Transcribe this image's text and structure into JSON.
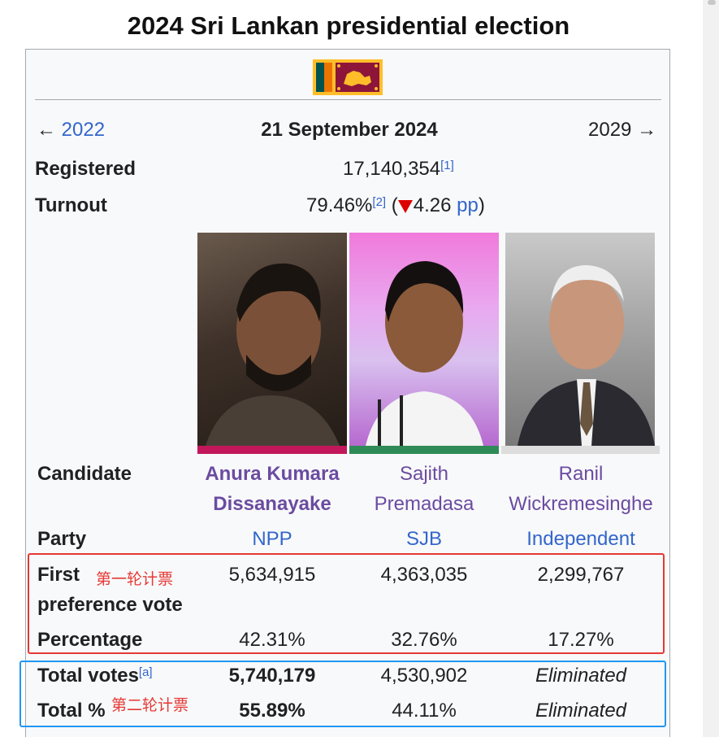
{
  "title": "2024 Sri Lankan presidential election",
  "nav": {
    "prev": "2022",
    "prev_arrow": "←",
    "date": "21 September 2024",
    "next": "2029",
    "next_arrow": "→"
  },
  "registered": {
    "label": "Registered",
    "value": "17,140,354",
    "ref": "[1]"
  },
  "turnout": {
    "label": "Turnout",
    "value": "79.46%",
    "ref": "[2]",
    "open": "(",
    "change": "4.26",
    "unit": "pp",
    "close": ")"
  },
  "rows": {
    "candidate": "Candidate",
    "party": "Party",
    "first_pref_line1": "First",
    "first_pref_line2": "preference vote",
    "percentage": "Percentage",
    "total_votes": "Total votes",
    "total_votes_ref": "[a]",
    "total_pct": "Total %"
  },
  "candidates": [
    {
      "name_line1": "Anura Kumara",
      "name_line2": "Dissanayake",
      "party": "NPP",
      "first_pref": "5,634,915",
      "percentage": "42.31%",
      "total_votes": "5,740,179",
      "total_pct": "55.89%",
      "party_color": "#c2185b"
    },
    {
      "name_line1": "Sajith",
      "name_line2": "Premadasa",
      "party": "SJB",
      "first_pref": "4,363,035",
      "percentage": "32.76%",
      "total_votes": "4,530,902",
      "total_pct": "44.11%",
      "party_color": "#2e8b57"
    },
    {
      "name_line1": "Ranil",
      "name_line2": "Wickremesinghe",
      "party": "Independent",
      "first_pref": "2,299,767",
      "percentage": "17.27%",
      "total_votes": "Eliminated",
      "total_pct": "Eliminated",
      "party_color": "#dddddd"
    }
  ],
  "annotations": {
    "first_round": "第一轮计票",
    "second_round": "第二轮计票"
  }
}
